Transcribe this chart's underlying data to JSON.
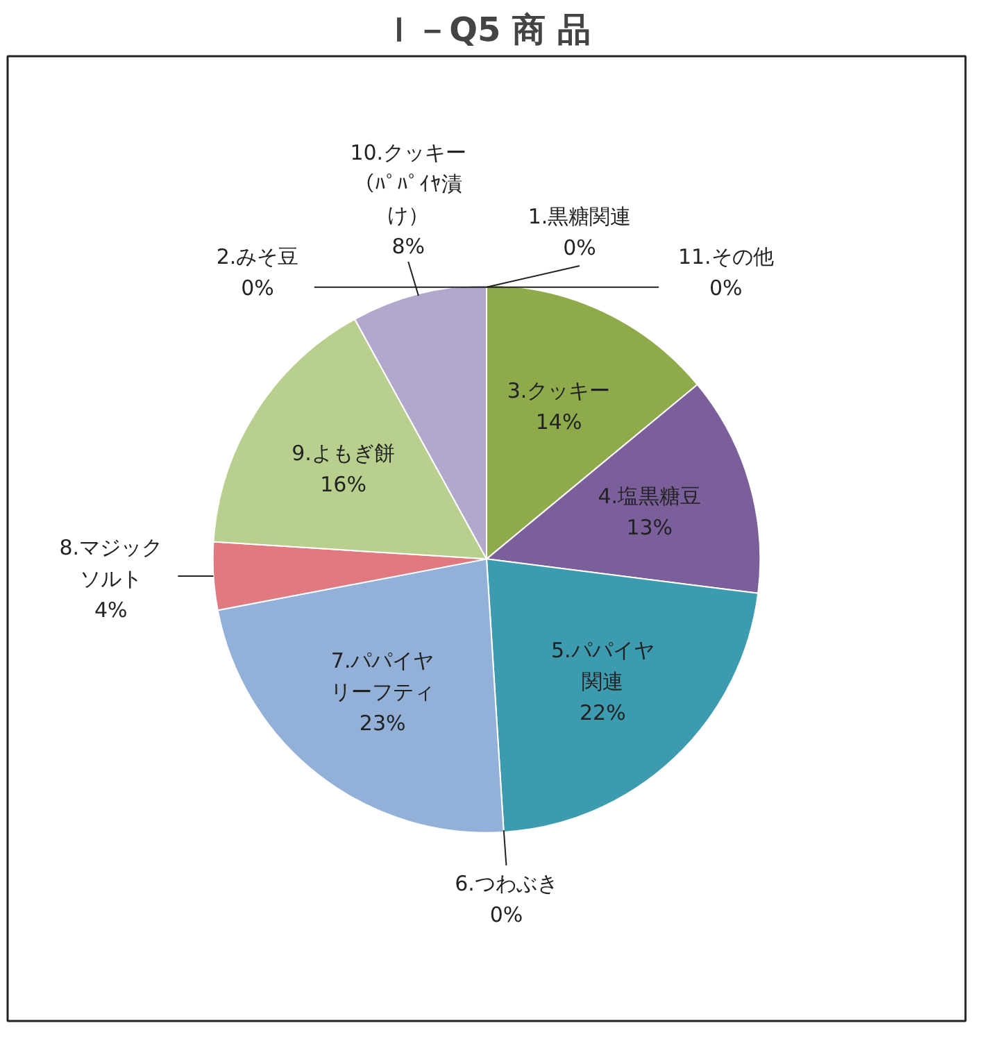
{
  "chart_data": {
    "type": "pie",
    "title": "Ｉ－Q5 商 品",
    "categories": [
      "1.黒糖関連",
      "2.みそ豆",
      "3.クッキー",
      "4.塩黒糖豆",
      "5.パパイヤ関連",
      "6.つわぶき",
      "7.パパイヤリーフティ",
      "8.マジックソルト",
      "9.よもぎ餅",
      "10.クッキー（ﾊﾟﾊﾟｲﾔ漬け）",
      "11.その他"
    ],
    "values": [
      0,
      0,
      14,
      13,
      22,
      0,
      23,
      4,
      16,
      8,
      0
    ],
    "value_labels": [
      "0%",
      "0%",
      "14%",
      "13%",
      "22%",
      "0%",
      "23%",
      "4%",
      "16%",
      "8%",
      "0%"
    ],
    "colors": [
      "#c0504d",
      "#4f81bd",
      "#8faa4a",
      "#7a5f9a",
      "#3d9bb0",
      "#f79646",
      "#93b1d8",
      "#e07a80",
      "#b8cf8e",
      "#b2a8cc",
      "#8064a2"
    ]
  }
}
